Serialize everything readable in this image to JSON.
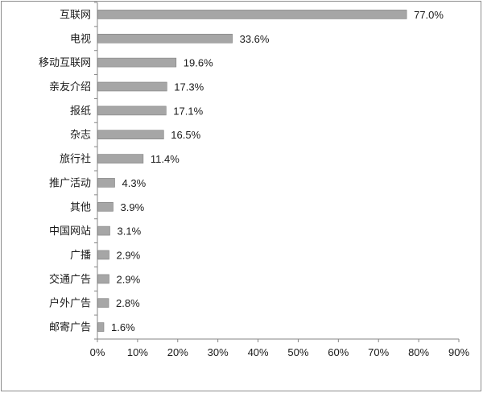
{
  "chart_data": {
    "type": "bar",
    "orientation": "horizontal",
    "categories": [
      "互联网",
      "电视",
      "移动互联网",
      "亲友介绍",
      "报纸",
      "杂志",
      "旅行社",
      "推广活动",
      "其他",
      "中国网站",
      "广播",
      "交通广告",
      "户外广告",
      "邮寄广告"
    ],
    "values": [
      77.0,
      33.6,
      19.6,
      17.3,
      17.1,
      16.5,
      11.4,
      4.3,
      3.9,
      3.1,
      2.9,
      2.9,
      2.8,
      1.6
    ],
    "value_labels": [
      "77.0%",
      "33.6%",
      "19.6%",
      "17.3%",
      "17.1%",
      "16.5%",
      "11.4%",
      "4.3%",
      "3.9%",
      "3.1%",
      "2.9%",
      "2.9%",
      "2.8%",
      "1.6%"
    ],
    "xlim": [
      0,
      90
    ],
    "xticks": [
      0,
      10,
      20,
      30,
      40,
      50,
      60,
      70,
      80,
      90
    ],
    "xtick_labels": [
      "0%",
      "10%",
      "20%",
      "30%",
      "40%",
      "50%",
      "60%",
      "70%",
      "80%",
      "90%"
    ],
    "grid": false,
    "legend": "none",
    "title": "",
    "xlabel": "",
    "ylabel": "",
    "colors": {
      "bar": "#a6a6a6",
      "bar_edge": "#7f7f7f",
      "axis": "#868686"
    }
  }
}
